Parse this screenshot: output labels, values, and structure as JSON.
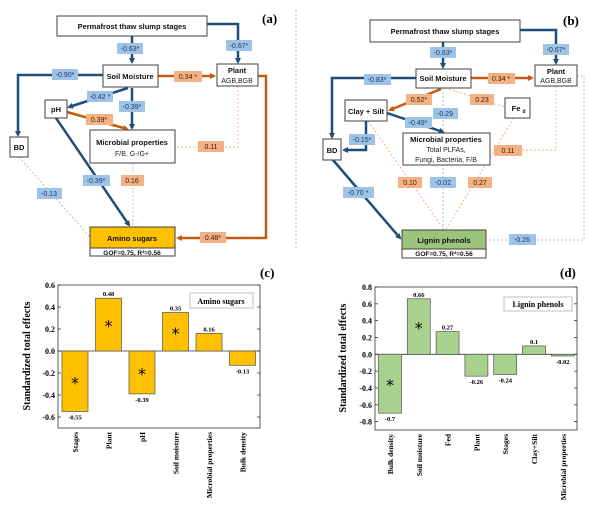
{
  "panel_a": {
    "label": "(a)",
    "nodes": {
      "stages": "Permafrost thaw slump stages",
      "soil_moisture": "Soil Moisture",
      "plant": "Plant",
      "plant_sub": "AGB,BGB",
      "ph": "pH",
      "bd": "BD",
      "microbial": "Microbial properties",
      "microbial_sub": "F/B, G-/G+",
      "target": "Amino sugars",
      "fit": "GOF=0.75, R²=0.56"
    },
    "paths": {
      "stages_sm": "-0.63*",
      "stages_plant": "-0.67*",
      "sm_bd": "-0.90*",
      "sm_plant": "0.34 *",
      "sm_ph": "-0.42 *",
      "sm_micro": "-0.39*",
      "ph_micro": "0.39*",
      "plant_micro": "0.11",
      "ph_target": "-0.39*",
      "micro_target": "0.16",
      "bd_target": "-0.13",
      "plant_target": "0.48*"
    }
  },
  "panel_b": {
    "label": "(b)",
    "nodes": {
      "stages": "Permafrost thaw slump stages",
      "soil_moisture": "Soil Moisture",
      "plant": "Plant",
      "plant_sub": "AGB,BGB",
      "clay": "Clay + Silt",
      "fed": "Fe",
      "fed_sub": "d",
      "bd": "BD",
      "microbial": "Microbial properties",
      "microbial_sub1": "Total PLFAs,",
      "microbial_sub2": "Fungi, Bacteria, F/B",
      "target": "Lignin phenols",
      "fit": "GOF=0.75, R²=0.56"
    },
    "paths": {
      "stages_sm": "-0.63*",
      "stages_plant": "-0.67*",
      "sm_bd": "-0.83*",
      "sm_plant": "0.34 *",
      "sm_clay": "0.52*",
      "sm_fed": "0.23",
      "sm_micro": "-0.29",
      "clay_micro": "-0.49*",
      "clay_bd": "-0.15*",
      "plant_micro": "0.11",
      "clay_target": "0.10",
      "micro_target": "-0.02",
      "fed_target": "0.27",
      "bd_target": "-0.70 *",
      "plant_target": "-0.26"
    }
  },
  "chart_data": [
    {
      "panel": "(c)",
      "type": "bar",
      "legend": "Amino sugars",
      "ylabel": "Standardized total effects",
      "xlabel": "",
      "categories": [
        "Stages",
        "Plant",
        "pH",
        "Soil moisture",
        "Microbial properties",
        "Bulk density"
      ],
      "values": [
        -0.55,
        0.48,
        -0.39,
        0.35,
        0.16,
        -0.13
      ],
      "value_labels": [
        "-0.55",
        "0.48",
        "-0.39",
        "0.35",
        "0.16",
        "-0.13"
      ],
      "significant": [
        true,
        true,
        true,
        true,
        false,
        false
      ],
      "ylim": [
        -0.7,
        0.6
      ],
      "yticks": [
        -0.6,
        -0.4,
        -0.2,
        0.0,
        0.2,
        0.4,
        0.6
      ],
      "ytick_labels": [
        "-0.6",
        "-0.4",
        "-0.2",
        "0.0",
        "0.2",
        "0.4",
        "0.6"
      ],
      "bar_color": "#ffc000",
      "grid": false,
      "legend_position": "top-right"
    },
    {
      "panel": "(d)",
      "type": "bar",
      "legend": "Lignin phenols",
      "ylabel": "Standardized total effects",
      "xlabel": "",
      "categories": [
        "Bulk density",
        "Soil moisture",
        "Fed",
        "Plant",
        "Stages",
        "Clay+Silt",
        "Microbial properties"
      ],
      "values": [
        -0.7,
        0.66,
        0.27,
        -0.26,
        -0.24,
        0.1,
        -0.02
      ],
      "value_labels": [
        "-0.7",
        "0.66",
        "0.27",
        "-0.26",
        "-0.24",
        "0.1",
        "-0.02"
      ],
      "significant": [
        true,
        true,
        false,
        false,
        false,
        false,
        false
      ],
      "ylim": [
        -0.9,
        0.8
      ],
      "yticks": [
        -0.8,
        -0.6,
        -0.4,
        -0.2,
        0.0,
        0.2,
        0.4,
        0.6,
        0.8
      ],
      "ytick_labels": [
        "-0.8",
        "-0.6",
        "-0.4",
        "-0.2",
        "0.0",
        "0.2",
        "0.4",
        "0.6",
        "0.8"
      ],
      "bar_color": "#a9d18e",
      "grid": false,
      "legend_position": "top-right"
    }
  ],
  "significance_marker": "*",
  "colors": {
    "negative_path": "#1f4e79",
    "positive_path": "#c55a11",
    "negative_label": "#9dc3e6",
    "positive_label": "#f4b183",
    "amino_sugars": "#ffc000",
    "lignin_phenols": "#9bc57c"
  }
}
